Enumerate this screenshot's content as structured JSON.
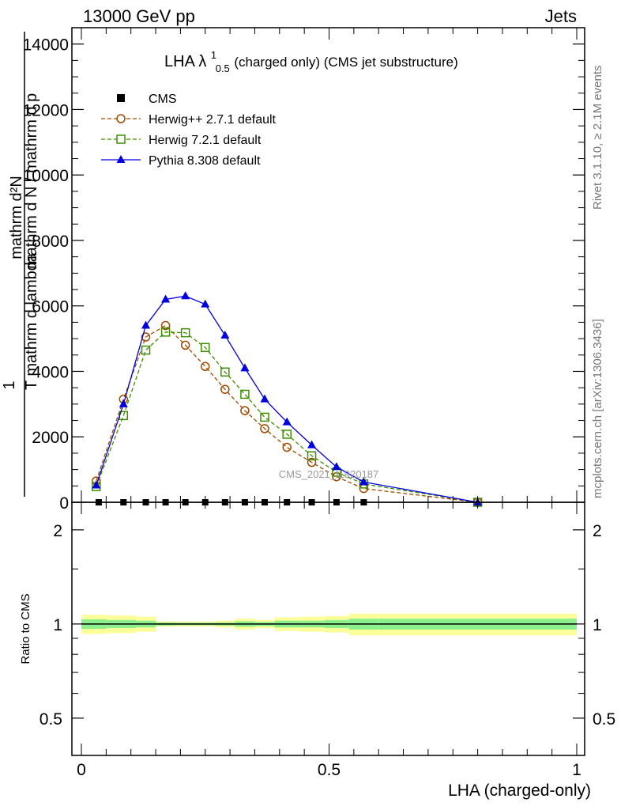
{
  "header": {
    "left": "13000 GeV pp",
    "right": "Jets"
  },
  "side_labels": {
    "rivet": "Rivet 3.1.10, ≥ 2.1M events",
    "mcplots": "mcplots.cern.ch [arXiv:1306.3436]"
  },
  "watermark": "CMS_2021_I1920187",
  "chart_data": [
    {
      "type": "line",
      "title": "LHA λ",
      "title_sup": "1",
      "title_sub": "0.5",
      "title_rest": " (charged only) (CMS jet substructure)",
      "ylabel_top": "1",
      "ylabel_numerator": "mathrm d²N",
      "ylabel_denominator": "mathrm d N / mathrm d p",
      "ylabel_extra": "T mathrm d lambda",
      "ylabel_sub": "T",
      "ylim": [
        0,
        14500
      ],
      "yticks": [
        0,
        2000,
        4000,
        6000,
        8000,
        10000,
        12000,
        14000
      ],
      "ytick_labels": [
        "0",
        "2000",
        "4000",
        "6000",
        "8000",
        "10000",
        "12000",
        "14000"
      ],
      "legend_position": "top-left",
      "legend": [
        "CMS",
        "Herwig++ 2.7.1 default",
        "Herwig 7.2.1 default",
        "Pythia 8.308 default"
      ],
      "series": [
        {
          "name": "CMS",
          "color": "#000000",
          "marker": "filled-square",
          "x": [
            0.035,
            0.085,
            0.13,
            0.17,
            0.21,
            0.25,
            0.29,
            0.33,
            0.37,
            0.415,
            0.465,
            0.515,
            0.57
          ],
          "y": [
            0,
            0,
            0,
            0,
            0,
            0,
            0,
            0,
            0,
            0,
            0,
            0,
            0
          ]
        },
        {
          "name": "Herwig++ 2.7.1 default",
          "color": "#a04a00",
          "marker": "open-circle",
          "dashed": true,
          "x": [
            0.03,
            0.085,
            0.13,
            0.17,
            0.21,
            0.25,
            0.29,
            0.33,
            0.37,
            0.415,
            0.465,
            0.515,
            0.57,
            0.8
          ],
          "y": [
            650,
            3150,
            5050,
            5400,
            4800,
            4150,
            3450,
            2800,
            2250,
            1680,
            1220,
            780,
            420,
            0
          ]
        },
        {
          "name": "Herwig 7.2.1 default",
          "color": "#3f8f00",
          "marker": "open-square",
          "dashed": true,
          "x": [
            0.03,
            0.085,
            0.13,
            0.17,
            0.21,
            0.25,
            0.29,
            0.33,
            0.37,
            0.415,
            0.465,
            0.515,
            0.57,
            0.8
          ],
          "y": [
            480,
            2650,
            4650,
            5200,
            5180,
            4730,
            3980,
            3300,
            2600,
            2080,
            1420,
            920,
            560,
            0
          ]
        },
        {
          "name": "Pythia 8.308 default",
          "color": "#0000e0",
          "marker": "filled-triangle",
          "dashed": false,
          "x": [
            0.03,
            0.085,
            0.13,
            0.17,
            0.21,
            0.25,
            0.29,
            0.33,
            0.37,
            0.415,
            0.465,
            0.515,
            0.57,
            0.8
          ],
          "y": [
            520,
            3000,
            5400,
            6200,
            6300,
            6050,
            5100,
            4100,
            3150,
            2450,
            1750,
            1080,
            620,
            0
          ]
        }
      ]
    },
    {
      "type": "line",
      "ylabel": "Ratio to CMS",
      "xlabel": "LHA (charged-only)",
      "xlim": [
        -0.02,
        1.02
      ],
      "xticks": [
        0,
        0.5,
        1
      ],
      "xtick_labels": [
        "0",
        "0.5",
        "1"
      ],
      "ylim": [
        0.38,
        2.45
      ],
      "yticks": [
        0.5,
        1,
        2
      ],
      "ytick_labels": [
        "0.5",
        "1",
        "2"
      ],
      "bin_edges": [
        0,
        0.05,
        0.11,
        0.15,
        0.19,
        0.23,
        0.27,
        0.31,
        0.35,
        0.39,
        0.44,
        0.49,
        0.54,
        0.6,
        1.0
      ],
      "inner_band": {
        "color": "#8cf08c",
        "halfwidth": [
          0.035,
          0.03,
          0.025,
          0.012,
          0.01,
          0.01,
          0.012,
          0.02,
          0.015,
          0.025,
          0.025,
          0.03,
          0.04,
          0.04
        ]
      },
      "outer_band": {
        "color": "#ffff99",
        "halfwidth": [
          0.07,
          0.065,
          0.055,
          0.02,
          0.018,
          0.018,
          0.025,
          0.04,
          0.03,
          0.05,
          0.055,
          0.06,
          0.08,
          0.08
        ]
      },
      "reference": 1
    }
  ]
}
